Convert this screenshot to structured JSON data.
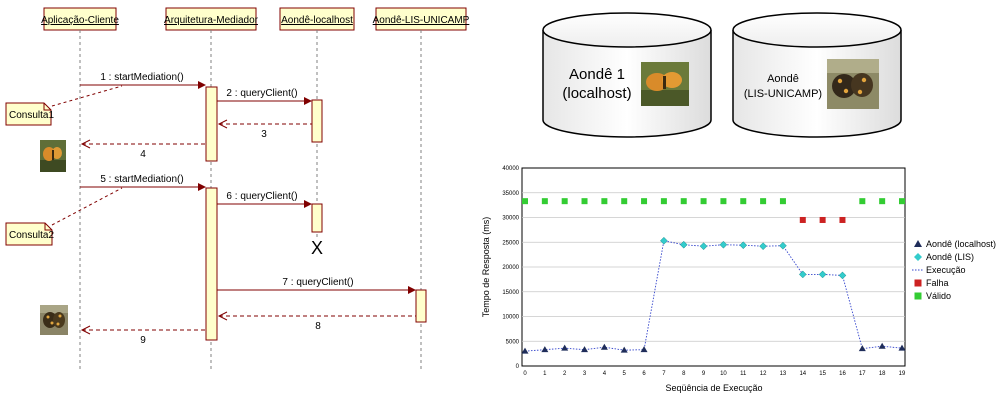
{
  "sequence": {
    "lifelines": [
      "Aplicação-Cliente",
      "Arquitetura-Mediador",
      "Aondê-localhost",
      "Aondê-LIS-UNICAMP"
    ],
    "notes": [
      "Consulta1",
      "Consulta2"
    ],
    "messages": [
      {
        "label": "1 : startMediation()",
        "kind": "call"
      },
      {
        "label": "2 : queryClient()",
        "kind": "call"
      },
      {
        "label": "3",
        "kind": "return"
      },
      {
        "label": "4",
        "kind": "return"
      },
      {
        "label": "5 : startMediation()",
        "kind": "call"
      },
      {
        "label": "6 : queryClient()",
        "kind": "call"
      },
      {
        "label": "7 : queryClient()",
        "kind": "call"
      },
      {
        "label": "8",
        "kind": "return"
      },
      {
        "label": "9",
        "kind": "return"
      }
    ],
    "destroy_mark": "X",
    "colors": {
      "lifeline_box": "#ffffcc",
      "activation": "#ffffcc",
      "arrow": "#800000",
      "note": "#ffffcc"
    }
  },
  "databases": [
    {
      "title_line1": "Aondê 1",
      "title_line2": "(localhost)",
      "photo": "orange-butterfly-photo"
    },
    {
      "title_line1": "Aondê",
      "title_line2": "(LIS-UNICAMP)",
      "photo": "brown-butterfly-photo"
    }
  ],
  "chart_data": {
    "type": "line",
    "xlabel": "Seqüência de Execução",
    "ylabel": "Tempo de Resposta (ms)",
    "x": [
      0,
      1,
      2,
      3,
      4,
      5,
      6,
      7,
      8,
      9,
      10,
      11,
      12,
      13,
      14,
      15,
      16,
      17,
      18,
      19
    ],
    "ylim": [
      0,
      40000
    ],
    "yticks": [
      "0",
      "5000",
      "10000",
      "15000",
      "20000",
      "25000",
      "30000",
      "35000",
      "40000"
    ],
    "grid": true,
    "legend_position": "right",
    "series": [
      {
        "name": "Aondê (localhost)",
        "marker": "triangle",
        "color": "#1f2d5a",
        "points": [
          [
            0,
            3000
          ],
          [
            1,
            3300
          ],
          [
            2,
            3600
          ],
          [
            3,
            3300
          ],
          [
            4,
            3800
          ],
          [
            5,
            3200
          ],
          [
            6,
            3300
          ],
          [
            17,
            3500
          ],
          [
            18,
            4000
          ],
          [
            19,
            3600
          ]
        ]
      },
      {
        "name": "Aondê (LIS)",
        "marker": "diamond",
        "color": "#33cccc",
        "points": [
          [
            7,
            25300
          ],
          [
            8,
            24500
          ],
          [
            9,
            24200
          ],
          [
            10,
            24500
          ],
          [
            11,
            24400
          ],
          [
            12,
            24200
          ],
          [
            13,
            24300
          ],
          [
            14,
            18500
          ],
          [
            15,
            18500
          ],
          [
            16,
            18300
          ]
        ]
      },
      {
        "name": "Execução",
        "marker": "dotted-line",
        "color": "#3344cc",
        "points": [
          [
            0,
            3000
          ],
          [
            1,
            3300
          ],
          [
            2,
            3600
          ],
          [
            3,
            3300
          ],
          [
            4,
            3800
          ],
          [
            5,
            3200
          ],
          [
            6,
            3300
          ],
          [
            7,
            25300
          ],
          [
            8,
            24500
          ],
          [
            9,
            24200
          ],
          [
            10,
            24500
          ],
          [
            11,
            24400
          ],
          [
            12,
            24200
          ],
          [
            13,
            24300
          ],
          [
            14,
            18500
          ],
          [
            15,
            18500
          ],
          [
            16,
            18300
          ],
          [
            17,
            3500
          ],
          [
            18,
            4000
          ],
          [
            19,
            3600
          ]
        ]
      },
      {
        "name": "Falha",
        "marker": "square",
        "color": "#cc2222",
        "points": [
          [
            14,
            29500
          ],
          [
            15,
            29500
          ],
          [
            16,
            29500
          ]
        ]
      },
      {
        "name": "Válido",
        "marker": "square",
        "color": "#33cc33",
        "points": [
          [
            0,
            33300
          ],
          [
            1,
            33300
          ],
          [
            2,
            33300
          ],
          [
            3,
            33300
          ],
          [
            4,
            33300
          ],
          [
            5,
            33300
          ],
          [
            6,
            33300
          ],
          [
            7,
            33300
          ],
          [
            8,
            33300
          ],
          [
            9,
            33300
          ],
          [
            10,
            33300
          ],
          [
            11,
            33300
          ],
          [
            12,
            33300
          ],
          [
            13,
            33300
          ],
          [
            17,
            33300
          ],
          [
            18,
            33300
          ],
          [
            19,
            33300
          ]
        ]
      }
    ]
  }
}
